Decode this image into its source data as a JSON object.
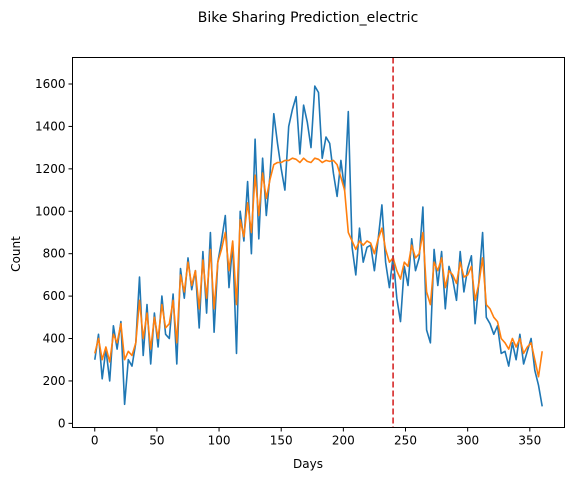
{
  "chart_data": {
    "type": "line",
    "title": "Bike Sharing Prediction_electric",
    "xlabel": "Days",
    "ylabel": "Count",
    "xlim": [
      -17.9,
      377.9
    ],
    "ylim": [
      -19.5,
      1725
    ],
    "xticks": [
      0,
      50,
      100,
      150,
      200,
      250,
      300,
      350
    ],
    "yticks": [
      0,
      200,
      400,
      600,
      800,
      1000,
      1200,
      1400,
      1600
    ],
    "grid": false,
    "legend": "none",
    "vline": {
      "x": 240,
      "color": "#d62728",
      "style": "dashed"
    },
    "series": [
      {
        "color": "#1f77b4",
        "x": [
          0,
          3,
          6,
          9,
          12,
          15,
          18,
          21,
          24,
          27,
          30,
          33,
          36,
          39,
          42,
          45,
          48,
          51,
          54,
          57,
          60,
          63,
          66,
          69,
          72,
          75,
          78,
          81,
          84,
          87,
          90,
          93,
          96,
          99,
          102,
          105,
          108,
          111,
          114,
          117,
          120,
          123,
          126,
          129,
          132,
          135,
          138,
          141,
          144,
          147,
          150,
          153,
          156,
          159,
          162,
          165,
          168,
          171,
          174,
          177,
          180,
          183,
          186,
          189,
          192,
          195,
          198,
          201,
          204,
          207,
          210,
          213,
          216,
          219,
          222,
          225,
          228,
          231,
          234,
          237,
          240,
          243,
          246,
          249,
          252,
          255,
          258,
          261,
          264,
          267,
          270,
          273,
          276,
          279,
          282,
          285,
          288,
          291,
          294,
          297,
          300,
          303,
          306,
          309,
          312,
          315,
          318,
          321,
          324,
          327,
          330,
          333,
          336,
          339,
          342,
          345,
          348,
          351,
          354,
          357,
          360
        ],
        "values": [
          300,
          420,
          210,
          350,
          200,
          460,
          350,
          480,
          90,
          300,
          270,
          380,
          690,
          320,
          560,
          280,
          520,
          360,
          600,
          420,
          400,
          610,
          280,
          730,
          590,
          780,
          630,
          720,
          450,
          810,
          520,
          900,
          430,
          760,
          860,
          980,
          640,
          850,
          330,
          1000,
          860,
          1140,
          800,
          1340,
          870,
          1250,
          980,
          1170,
          1460,
          1320,
          1200,
          1100,
          1400,
          1480,
          1540,
          1270,
          1500,
          1420,
          1300,
          1590,
          1560,
          1250,
          1350,
          1320,
          1180,
          1070,
          1240,
          1100,
          1470,
          830,
          700,
          920,
          760,
          830,
          840,
          720,
          870,
          1030,
          760,
          640,
          790,
          590,
          480,
          740,
          650,
          870,
          720,
          780,
          1020,
          440,
          380,
          820,
          650,
          810,
          540,
          740,
          680,
          580,
          810,
          620,
          730,
          790,
          470,
          670,
          900,
          500,
          470,
          420,
          460,
          330,
          340,
          270,
          380,
          300,
          420,
          280,
          340,
          400,
          250,
          180,
          80
        ]
      },
      {
        "color": "#ff7f0e",
        "x": [
          0,
          3,
          6,
          9,
          12,
          15,
          18,
          21,
          24,
          27,
          30,
          33,
          36,
          39,
          42,
          45,
          48,
          51,
          54,
          57,
          60,
          63,
          66,
          69,
          72,
          75,
          78,
          81,
          84,
          87,
          90,
          93,
          96,
          99,
          102,
          105,
          108,
          111,
          114,
          117,
          120,
          123,
          126,
          129,
          132,
          135,
          138,
          141,
          144,
          147,
          150,
          153,
          156,
          159,
          162,
          165,
          168,
          171,
          174,
          177,
          180,
          183,
          186,
          189,
          192,
          195,
          198,
          201,
          204,
          207,
          210,
          213,
          216,
          219,
          222,
          225,
          228,
          231,
          234,
          237,
          240,
          243,
          246,
          249,
          252,
          255,
          258,
          261,
          264,
          267,
          270,
          273,
          276,
          279,
          282,
          285,
          288,
          291,
          294,
          297,
          300,
          303,
          306,
          309,
          312,
          315,
          318,
          321,
          324,
          327,
          330,
          333,
          336,
          339,
          342,
          345,
          348,
          351,
          354,
          357,
          360
        ],
        "values": [
          330,
          400,
          300,
          360,
          290,
          420,
          380,
          470,
          300,
          340,
          320,
          380,
          580,
          400,
          520,
          350,
          500,
          400,
          560,
          450,
          470,
          580,
          380,
          700,
          620,
          760,
          650,
          720,
          540,
          770,
          590,
          820,
          540,
          760,
          820,
          900,
          720,
          860,
          560,
          960,
          880,
          1040,
          900,
          1170,
          980,
          1180,
          1060,
          1150,
          1220,
          1230,
          1230,
          1240,
          1240,
          1250,
          1245,
          1230,
          1250,
          1235,
          1230,
          1250,
          1245,
          1230,
          1240,
          1235,
          1240,
          1220,
          1160,
          1100,
          900,
          860,
          820,
          860,
          840,
          860,
          850,
          800,
          870,
          920,
          820,
          760,
          780,
          720,
          680,
          760,
          740,
          840,
          780,
          800,
          900,
          620,
          560,
          760,
          720,
          780,
          640,
          720,
          700,
          660,
          760,
          690,
          700,
          740,
          580,
          660,
          780,
          560,
          540,
          500,
          480,
          400,
          380,
          350,
          400,
          360,
          400,
          330,
          360,
          380,
          300,
          220,
          340
        ]
      }
    ]
  }
}
